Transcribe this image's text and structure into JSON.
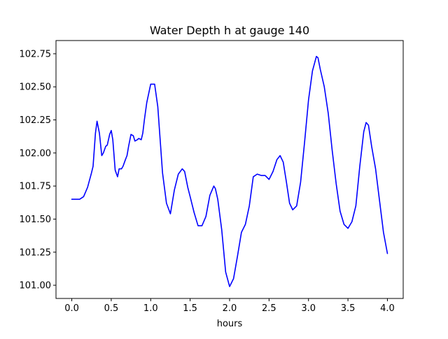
{
  "chart_data": {
    "type": "line",
    "title": "Water Depth h at gauge 140",
    "xlabel": "hours",
    "ylabel": "",
    "xlim": [
      -0.2,
      4.2
    ],
    "ylim": [
      100.9,
      102.85
    ],
    "xticks": [
      0.0,
      0.5,
      1.0,
      1.5,
      2.0,
      2.5,
      3.0,
      3.5,
      4.0
    ],
    "xtick_labels": [
      "0.0",
      "0.5",
      "1.0",
      "1.5",
      "2.0",
      "2.5",
      "3.0",
      "3.5",
      "4.0"
    ],
    "yticks": [
      101.0,
      101.25,
      101.5,
      101.75,
      102.0,
      102.25,
      102.5,
      102.75
    ],
    "ytick_labels": [
      "101.00",
      "101.25",
      "101.50",
      "101.75",
      "102.00",
      "102.25",
      "102.50",
      "102.75"
    ],
    "grid": false,
    "series": [
      {
        "color": "#0000ff",
        "x": [
          0.0,
          0.1,
          0.15,
          0.2,
          0.25,
          0.27,
          0.3,
          0.32,
          0.35,
          0.38,
          0.4,
          0.43,
          0.45,
          0.48,
          0.5,
          0.52,
          0.55,
          0.58,
          0.6,
          0.63,
          0.65,
          0.68,
          0.7,
          0.72,
          0.75,
          0.78,
          0.8,
          0.83,
          0.85,
          0.88,
          0.9,
          0.92,
          0.95,
          1.0,
          1.05,
          1.09,
          1.12,
          1.15,
          1.2,
          1.25,
          1.3,
          1.35,
          1.4,
          1.43,
          1.47,
          1.5,
          1.55,
          1.6,
          1.65,
          1.7,
          1.75,
          1.8,
          1.82,
          1.85,
          1.9,
          1.95,
          2.0,
          2.05,
          2.1,
          2.15,
          2.2,
          2.25,
          2.3,
          2.35,
          2.4,
          2.45,
          2.5,
          2.55,
          2.6,
          2.64,
          2.68,
          2.72,
          2.76,
          2.8,
          2.85,
          2.9,
          2.95,
          3.0,
          3.05,
          3.1,
          3.12,
          3.15,
          3.2,
          3.25,
          3.3,
          3.35,
          3.4,
          3.45,
          3.5,
          3.55,
          3.6,
          3.65,
          3.7,
          3.73,
          3.76,
          3.8,
          3.85,
          3.9,
          3.95,
          4.0
        ],
        "y": [
          101.65,
          101.65,
          101.67,
          101.74,
          101.85,
          101.9,
          102.15,
          102.24,
          102.15,
          101.98,
          102.0,
          102.05,
          102.06,
          102.14,
          102.17,
          102.1,
          101.87,
          101.82,
          101.88,
          101.88,
          101.9,
          101.95,
          101.98,
          102.05,
          102.14,
          102.13,
          102.09,
          102.1,
          102.11,
          102.1,
          102.15,
          102.25,
          102.38,
          102.52,
          102.52,
          102.35,
          102.1,
          101.85,
          101.62,
          101.54,
          101.72,
          101.84,
          101.88,
          101.86,
          101.74,
          101.67,
          101.55,
          101.45,
          101.45,
          101.52,
          101.68,
          101.75,
          101.73,
          101.65,
          101.42,
          101.1,
          100.99,
          101.05,
          101.22,
          101.4,
          101.46,
          101.6,
          101.82,
          101.84,
          101.83,
          101.83,
          101.8,
          101.86,
          101.95,
          101.98,
          101.93,
          101.78,
          101.62,
          101.57,
          101.6,
          101.78,
          102.08,
          102.4,
          102.62,
          102.73,
          102.72,
          102.63,
          102.5,
          102.3,
          102.02,
          101.77,
          101.56,
          101.46,
          101.43,
          101.48,
          101.6,
          101.9,
          102.16,
          102.23,
          102.21,
          102.05,
          101.88,
          101.64,
          101.4,
          101.24
        ]
      }
    ]
  }
}
